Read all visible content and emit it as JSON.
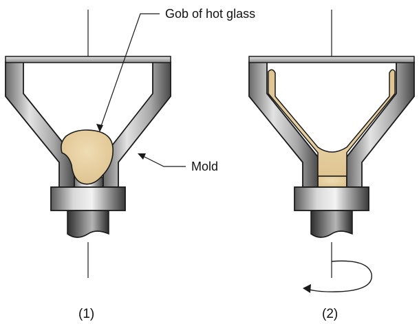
{
  "labels": {
    "gob": "Gob of hot glass",
    "mold": "Mold"
  },
  "captions": {
    "step1": "(1)",
    "step2": "(2)"
  },
  "colors": {
    "metal_light": "#d9d9d9",
    "metal_mid": "#9a9a9a",
    "metal_dark": "#3c3c3c",
    "glass": "#e6cfa0",
    "outline": "#1a1a1a"
  },
  "icons": {
    "rotation": "circular-rotation-arrow-icon"
  }
}
